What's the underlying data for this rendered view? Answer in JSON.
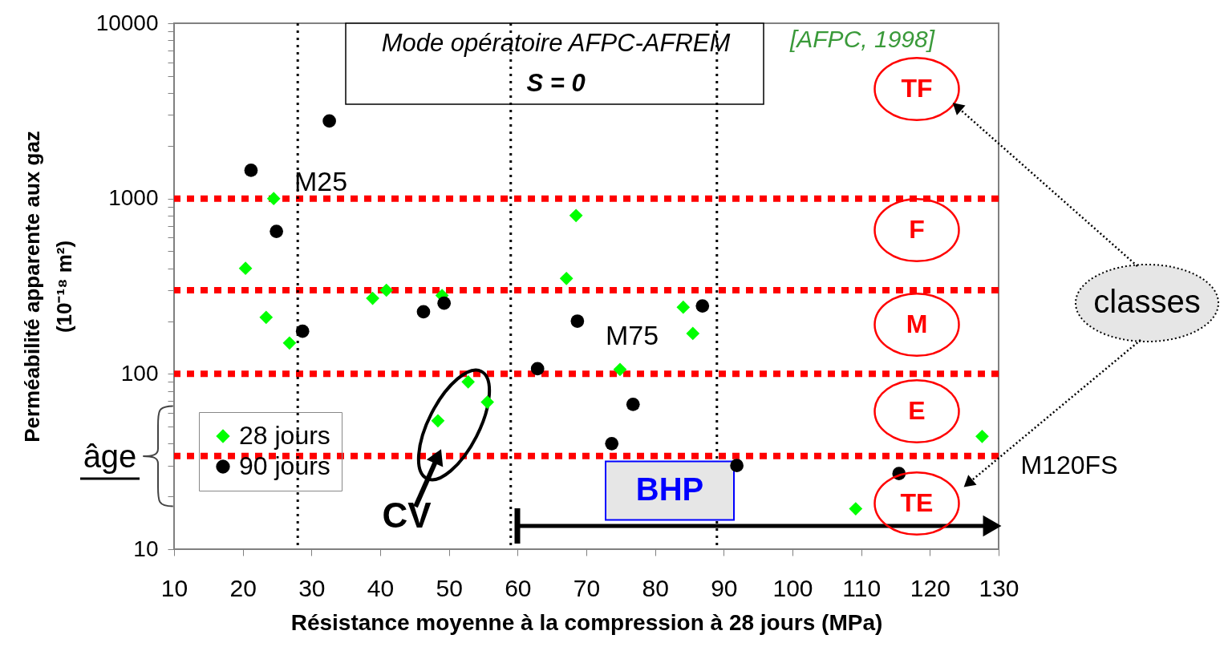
{
  "chart_data": {
    "type": "scatter",
    "title": "Mode opératoire AFPC-AFREM",
    "subtitle": "S = 0",
    "xlabel": "Résistance moyenne à la compression à 28 jours (MPa)",
    "ylabel": "Perméabilité apparente aux gaz\n(10⁻¹⁸ m²)",
    "series": [
      {
        "name": "28 jours",
        "color": "#00ff00",
        "marker": "diamond",
        "x": [
          20.4,
          24.5,
          23.4,
          26.8,
          38.9,
          40.9,
          49.0,
          48.4,
          52.8,
          55.6,
          68.5,
          67.1,
          74.9,
          84.1,
          85.5,
          109.2,
          127.6
        ],
        "values": [
          400,
          1000,
          210,
          150,
          270,
          300,
          280,
          54,
          90,
          69,
          800,
          350,
          106,
          240,
          170,
          17,
          44
        ]
      },
      {
        "name": "90 jours",
        "color": "#000000",
        "marker": "circle",
        "x": [
          21.2,
          24.9,
          28.7,
          32.6,
          46.3,
          49.3,
          62.9,
          68.7,
          73.7,
          76.8,
          86.9,
          91.9,
          115.5
        ],
        "values": [
          1450,
          650,
          175,
          2770,
          226,
          253,
          107,
          200,
          40,
          67,
          244,
          30,
          27
        ]
      }
    ],
    "xlim": [
      10,
      130
    ],
    "xticks": [
      10,
      20,
      30,
      40,
      50,
      60,
      70,
      80,
      90,
      100,
      110,
      120,
      130
    ],
    "ylim": [
      10,
      10000
    ],
    "log": true,
    "yticks": [
      10,
      {
        "value": 20,
        "label": null
      },
      {
        "value": 30,
        "label": null
      },
      {
        "value": 40,
        "label": null
      },
      {
        "value": 50,
        "label": null
      },
      {
        "value": 60,
        "label": null
      },
      {
        "value": 70,
        "label": null
      },
      {
        "value": 80,
        "label": null
      },
      {
        "value": 90,
        "label": null
      },
      100,
      {
        "value": 200,
        "label": null
      },
      {
        "value": 300,
        "label": null
      },
      {
        "value": 400,
        "label": null
      },
      {
        "value": 500,
        "label": null
      },
      {
        "value": 600,
        "label": null
      },
      {
        "value": 700,
        "label": null
      },
      {
        "value": 800,
        "label": null
      },
      {
        "value": 900,
        "label": null
      },
      1000,
      {
        "value": 2000,
        "label": null
      },
      {
        "value": 3000,
        "label": null
      },
      {
        "value": 4000,
        "label": null
      },
      {
        "value": 5000,
        "label": null
      },
      {
        "value": 6000,
        "label": null
      },
      {
        "value": 7000,
        "label": null
      },
      {
        "value": 8000,
        "label": null
      },
      {
        "value": 9000,
        "label": null
      },
      10000
    ],
    "ref_lines": [
      {
        "axis": "y",
        "value": 1000,
        "color": "#ff0000",
        "line_style": "dotted"
      },
      {
        "axis": "y",
        "value": 300,
        "color": "#ff0000",
        "line_style": "dotted"
      },
      {
        "axis": "y",
        "value": 100,
        "color": "#ff0000",
        "line_style": "dotted"
      },
      {
        "axis": "y",
        "value": 34,
        "color": "#ff0000",
        "line_style": "dotted"
      },
      {
        "axis": "x",
        "value": 28,
        "color": "#000000",
        "line_style": "dotted"
      },
      {
        "axis": "x",
        "value": 59,
        "color": "#000000",
        "line_style": "dotted"
      },
      {
        "axis": "x",
        "value": 89,
        "color": "#000000",
        "line_style": "dotted"
      }
    ],
    "annotations": [
      "M25",
      "M75",
      "CV",
      "BHP",
      "TF",
      "F",
      "M",
      "E",
      "TE",
      "[AFPC, 1998]",
      "M120FS",
      "classes",
      "âge"
    ],
    "legend": "bottom left",
    "grid": false
  }
}
